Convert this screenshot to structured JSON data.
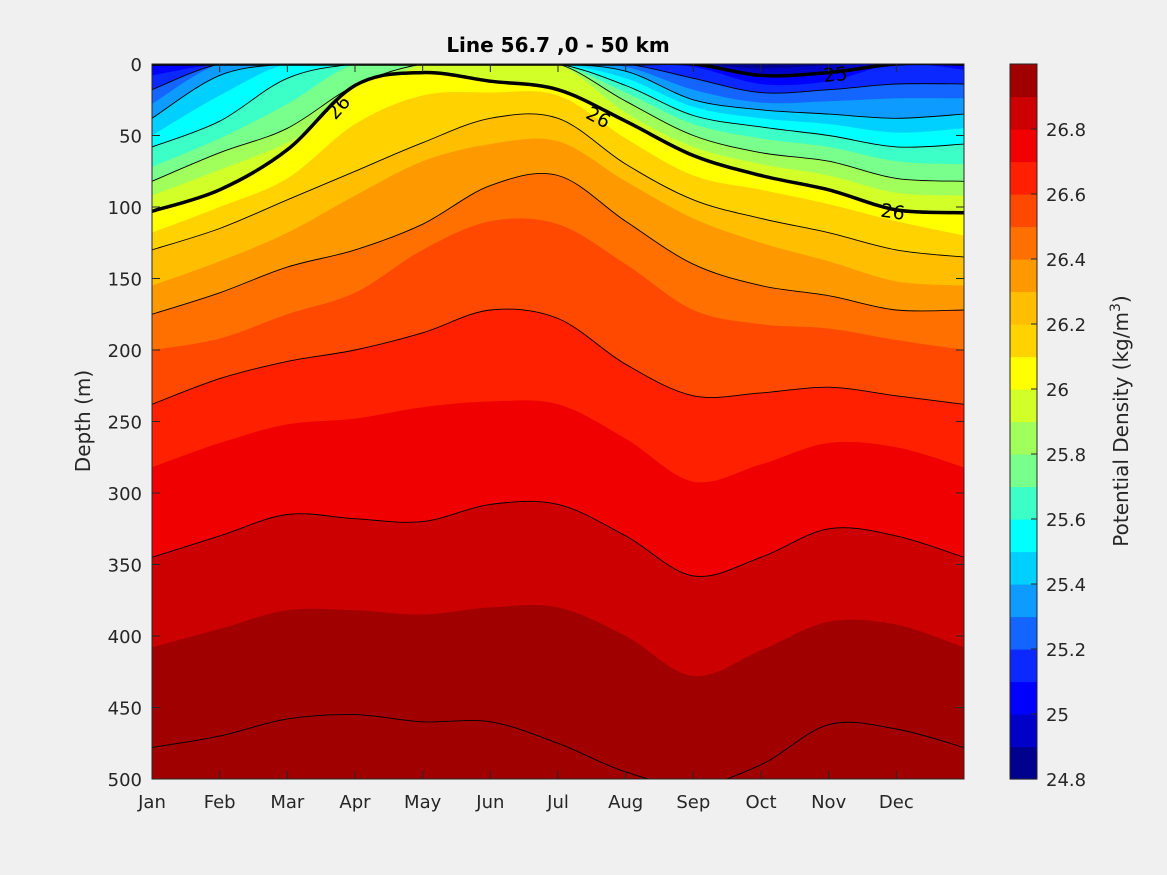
{
  "chart_data": {
    "type": "contour",
    "title": "Line 56.7 ,0 - 50 km",
    "ylabel": "Depth (m)",
    "colorbar": {
      "label_prefix": "Potential Density (kg/m",
      "label_superscript": "3",
      "label_suffix": ")",
      "range": [
        24.8,
        27.0
      ],
      "step": 0.1,
      "tick_values": [
        24.8,
        25,
        25.2,
        25.4,
        25.6,
        25.8,
        26,
        26.2,
        26.4,
        26.6,
        26.8
      ],
      "tick_labels": [
        "24.8",
        "25",
        "25.2",
        "25.4",
        "25.6",
        "25.8",
        "26",
        "26.2",
        "26.4",
        "26.6",
        "26.8"
      ],
      "colors": [
        "#00008f",
        "#0000c8",
        "#0000ff",
        "#0a28ff",
        "#1464ff",
        "#0d9bff",
        "#00d0ff",
        "#00ffff",
        "#3cffc8",
        "#78ff8c",
        "#a0ff5a",
        "#d2ff28",
        "#ffff00",
        "#ffd200",
        "#ffbf00",
        "#ff9900",
        "#ff7000",
        "#ff4800",
        "#ff2000",
        "#f00000",
        "#cc0000",
        "#a00000"
      ]
    },
    "x_months": [
      "Jan",
      "Feb",
      "Mar",
      "Apr",
      "May",
      "Jun",
      "Jul",
      "Aug",
      "Sep",
      "Oct",
      "Nov",
      "Dec"
    ],
    "xlim": [
      0,
      12
    ],
    "ylim": [
      0,
      500
    ],
    "y_reversed": true,
    "y_ticks": [
      0,
      50,
      100,
      150,
      200,
      250,
      300,
      350,
      400,
      450,
      500
    ],
    "isopycnal_depth_profiles": {
      "month_positions": [
        0,
        1,
        2,
        3,
        4,
        5,
        6,
        7,
        8,
        9,
        10,
        11,
        12
      ],
      "levels": [
        {
          "density": 24.9,
          "depths": [
            0,
            0,
            0,
            0,
            0,
            0,
            0,
            0,
            0,
            3,
            1,
            0,
            0
          ]
        },
        {
          "density": 25.0,
          "depths": [
            0,
            0,
            0,
            0,
            0,
            0,
            0,
            0,
            0,
            8,
            6,
            0,
            0
          ]
        },
        {
          "density": 25.1,
          "depths": [
            8,
            0,
            0,
            0,
            0,
            0,
            0,
            0,
            2,
            14,
            12,
            0,
            4
          ]
        },
        {
          "density": 25.2,
          "depths": [
            18,
            0,
            0,
            0,
            0,
            0,
            0,
            0,
            10,
            20,
            18,
            14,
            14
          ]
        },
        {
          "density": 25.3,
          "depths": [
            28,
            0,
            0,
            0,
            0,
            0,
            0,
            2,
            18,
            27,
            26,
            24,
            24
          ]
        },
        {
          "density": 25.4,
          "depths": [
            38,
            8,
            0,
            0,
            0,
            0,
            0,
            5,
            25,
            32,
            35,
            38,
            35
          ]
        },
        {
          "density": 25.5,
          "depths": [
            50,
            22,
            0,
            0,
            0,
            0,
            0,
            10,
            30,
            38,
            42,
            48,
            45
          ]
        },
        {
          "density": 25.6,
          "depths": [
            58,
            40,
            10,
            0,
            0,
            0,
            0,
            15,
            36,
            44,
            50,
            58,
            56
          ]
        },
        {
          "density": 25.7,
          "depths": [
            72,
            52,
            28,
            0,
            0,
            0,
            0,
            20,
            42,
            52,
            58,
            68,
            70
          ]
        },
        {
          "density": 25.8,
          "depths": [
            82,
            62,
            45,
            15,
            0,
            0,
            0,
            26,
            50,
            62,
            68,
            80,
            82
          ]
        },
        {
          "density": 25.9,
          "depths": [
            92,
            74,
            55,
            28,
            0,
            0,
            0,
            34,
            58,
            70,
            78,
            90,
            92
          ]
        },
        {
          "density": 26.0,
          "depths": [
            103,
            88,
            60,
            15,
            6,
            12,
            18,
            40,
            64,
            78,
            88,
            102,
            104
          ]
        },
        {
          "density": 26.1,
          "depths": [
            118,
            100,
            80,
            42,
            22,
            20,
            22,
            52,
            78,
            88,
            98,
            110,
            120
          ]
        },
        {
          "density": 26.2,
          "depths": [
            130,
            115,
            95,
            75,
            55,
            38,
            38,
            70,
            95,
            108,
            118,
            130,
            135
          ]
        },
        {
          "density": 26.3,
          "depths": [
            155,
            138,
            118,
            92,
            68,
            56,
            54,
            82,
            108,
            125,
            138,
            152,
            155
          ]
        },
        {
          "density": 26.4,
          "depths": [
            175,
            160,
            142,
            130,
            112,
            85,
            78,
            110,
            140,
            155,
            162,
            172,
            172
          ]
        },
        {
          "density": 26.5,
          "depths": [
            200,
            192,
            175,
            160,
            130,
            110,
            112,
            140,
            172,
            182,
            185,
            193,
            200
          ]
        },
        {
          "density": 26.6,
          "depths": [
            238,
            220,
            208,
            200,
            188,
            172,
            178,
            210,
            232,
            230,
            226,
            232,
            238
          ]
        },
        {
          "density": 26.7,
          "depths": [
            282,
            265,
            252,
            248,
            240,
            236,
            238,
            262,
            292,
            280,
            265,
            268,
            282
          ]
        },
        {
          "density": 26.8,
          "depths": [
            345,
            330,
            315,
            318,
            320,
            308,
            308,
            330,
            358,
            345,
            325,
            330,
            345
          ]
        },
        {
          "density": 26.9,
          "depths": [
            408,
            395,
            382,
            382,
            385,
            380,
            380,
            400,
            428,
            410,
            390,
            392,
            408
          ]
        },
        {
          "density": 27.0,
          "depths": [
            478,
            470,
            458,
            455,
            460,
            460,
            475,
            495,
            505,
            490,
            462,
            465,
            478
          ]
        }
      ],
      "labeled_contours": [
        25.0,
        26.0
      ]
    },
    "contour_labels": [
      {
        "text": "26",
        "month": 2.75,
        "depth": 30,
        "angle": -48
      },
      {
        "text": "26",
        "month": 6.6,
        "depth": 37,
        "angle": 28
      },
      {
        "text": "26",
        "month": 10.95,
        "depth": 103,
        "angle": 8
      },
      {
        "text": "25",
        "month": 10.1,
        "depth": 7,
        "angle": -5
      }
    ]
  }
}
